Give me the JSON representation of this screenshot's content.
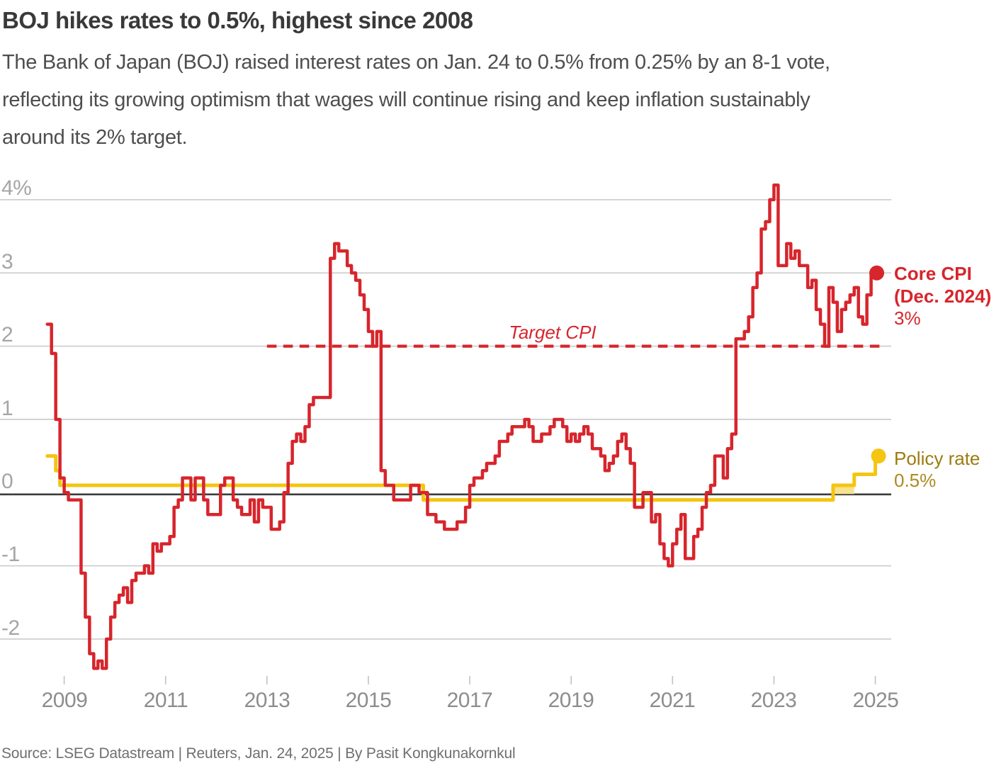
{
  "header": {
    "title": "BOJ hikes rates to 0.5%, highest since 2008",
    "subtitle_lines": [
      "The Bank of Japan (BOJ) raised interest rates on Jan. 24 to 0.5% from 0.25% by an 8-1 vote,",
      "reflecting its growing optimism that wages will continue rising and keep inflation sustainably",
      "around its 2% target."
    ]
  },
  "chart": {
    "y_axis": {
      "labels": [
        "4%",
        "3",
        "2",
        "1",
        "0",
        "-1",
        "-2"
      ],
      "values": [
        4,
        3,
        2,
        1,
        0,
        -1,
        -2
      ]
    },
    "x_axis": {
      "labels": [
        "2009",
        "2011",
        "2013",
        "2015",
        "2017",
        "2019",
        "2021",
        "2023",
        "2025"
      ],
      "years": [
        2009,
        2011,
        2013,
        2015,
        2017,
        2019,
        2021,
        2023,
        2025
      ]
    },
    "target_line": {
      "label": "Target CPI",
      "value": 2,
      "start_year": 2013.0,
      "end_year": 2025.13
    },
    "annotations": {
      "core_cpi": {
        "label_line1": "Core CPI",
        "label_line2": "(Dec. 2024)",
        "value_label": "3%"
      },
      "policy_rate": {
        "label": "Policy rate",
        "value_label": "0.5%"
      }
    },
    "colors": {
      "core_cpi": "#d7252c",
      "policy_rate": "#f4c511",
      "policy_band": "#f6e28f",
      "policy_label_bold": "#9c7b10",
      "policy_label_value": "#ab8b1f",
      "grid": "#cfcfcf",
      "zero_axis": "#3c3c3c",
      "tick": "#c2c2c2"
    }
  },
  "chart_data": {
    "type": "line",
    "title": "BOJ hikes rates to 0.5%, highest since 2008",
    "ylabel": "percent",
    "ylim": [
      -2.6,
      4.3
    ],
    "xlim": [
      2008.58,
      2025.3
    ],
    "grid": "horizontal",
    "target_cpi": 2,
    "series": [
      {
        "name": "Core CPI",
        "style": "step-monthly",
        "start": "2008-09",
        "end_label_value": 3,
        "values": [
          2.3,
          1.9,
          1.0,
          0.2,
          0.0,
          -0.1,
          -0.1,
          -0.1,
          -1.1,
          -1.7,
          -2.2,
          -2.4,
          -2.3,
          -2.4,
          -2.0,
          -1.7,
          -1.5,
          -1.4,
          -1.3,
          -1.5,
          -1.2,
          -1.1,
          -1.1,
          -1.0,
          -1.1,
          -0.7,
          -0.8,
          -0.7,
          -0.7,
          -0.6,
          -0.2,
          -0.1,
          0.2,
          0.2,
          -0.1,
          0.2,
          0.2,
          -0.1,
          -0.3,
          -0.3,
          -0.3,
          0.1,
          0.2,
          0.2,
          -0.1,
          -0.2,
          -0.3,
          -0.3,
          -0.1,
          -0.4,
          -0.1,
          -0.2,
          -0.2,
          -0.5,
          -0.5,
          -0.4,
          0.0,
          0.4,
          0.7,
          0.8,
          0.7,
          0.9,
          1.2,
          1.3,
          1.3,
          1.3,
          1.3,
          3.2,
          3.4,
          3.3,
          3.3,
          3.1,
          3.0,
          2.9,
          2.7,
          2.5,
          2.2,
          2.0,
          2.2,
          0.3,
          0.1,
          0.1,
          -0.1,
          -0.1,
          -0.1,
          -0.1,
          0.1,
          0.1,
          0.0,
          0.0,
          -0.3,
          -0.3,
          -0.4,
          -0.4,
          -0.5,
          -0.5,
          -0.5,
          -0.4,
          -0.4,
          -0.2,
          0.1,
          0.2,
          0.2,
          0.3,
          0.4,
          0.4,
          0.5,
          0.7,
          0.7,
          0.8,
          0.9,
          0.9,
          0.9,
          1.0,
          0.9,
          0.7,
          0.7,
          0.8,
          0.8,
          0.9,
          1.0,
          1.0,
          0.9,
          0.7,
          0.8,
          0.7,
          0.8,
          0.9,
          0.8,
          0.6,
          0.6,
          0.5,
          0.3,
          0.4,
          0.5,
          0.7,
          0.8,
          0.6,
          0.4,
          -0.2,
          -0.2,
          0.0,
          0.0,
          -0.4,
          -0.3,
          -0.7,
          -0.9,
          -1.0,
          -0.7,
          -0.5,
          -0.3,
          -0.9,
          -0.9,
          -0.6,
          -0.5,
          -0.2,
          0.0,
          0.1,
          0.5,
          0.5,
          0.2,
          0.6,
          0.8,
          2.1,
          2.1,
          2.2,
          2.4,
          2.8,
          3.0,
          3.6,
          3.7,
          4.0,
          4.2,
          3.1,
          3.1,
          3.4,
          3.2,
          3.3,
          3.1,
          3.1,
          2.8,
          2.9,
          2.5,
          2.3,
          2.0,
          2.8,
          2.6,
          2.2,
          2.5,
          2.6,
          2.7,
          2.8,
          2.4,
          2.3,
          2.7,
          3.0
        ]
      },
      {
        "name": "Policy rate",
        "style": "step-changes",
        "end_label_value": 0.5,
        "points": [
          [
            "2008-09",
            0.5
          ],
          [
            "2008-11",
            0.3
          ],
          [
            "2008-12",
            0.1
          ],
          [
            "2016-02",
            -0.1
          ],
          [
            "2024-03",
            0.1
          ],
          [
            "2024-08",
            0.25
          ],
          [
            "2025-01",
            0.5
          ]
        ],
        "band": {
          "from": "2024-03",
          "to": "2024-08",
          "low": 0,
          "high": 0.1
        }
      }
    ]
  },
  "footer": {
    "source": "Source: LSEG Datastream | Reuters, Jan. 24, 2025 | By Pasit Kongkunakornkul"
  }
}
